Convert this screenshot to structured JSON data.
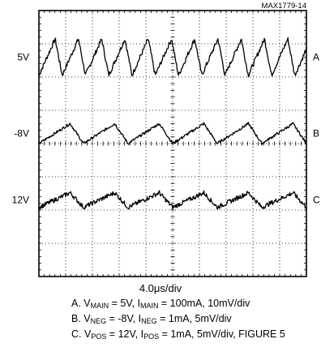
{
  "chart_data": {
    "type": "line",
    "figure_id": "MAX1779-14",
    "title": "",
    "xlabel": "4.0μs/div",
    "ylabel": "",
    "grid": true,
    "divisions": {
      "x": 10,
      "y": 8
    },
    "x_units": "div",
    "y_units": "div",
    "xlim": [
      0,
      10
    ],
    "ylim": [
      0,
      8
    ],
    "series": [
      {
        "marker": "A",
        "level_label": "5V",
        "waveform": "sawtooth",
        "center_div": 6.6,
        "amplitude_div": 0.55,
        "cycles": 11.5,
        "noise_div": 0.07,
        "description_parts": [
          {
            "t": "A. V"
          },
          {
            "t": "MAIN",
            "sub": true
          },
          {
            "t": " = 5V, I"
          },
          {
            "t": "MAIN",
            "sub": true
          },
          {
            "t": " = 100mA, 10mV/div"
          }
        ]
      },
      {
        "marker": "B",
        "level_label": "-8V",
        "waveform": "sawtooth",
        "center_div": 4.3,
        "amplitude_div": 0.3,
        "cycles": 6,
        "noise_div": 0.04,
        "description_parts": [
          {
            "t": "B. V"
          },
          {
            "t": "NEG",
            "sub": true
          },
          {
            "t": " = -8V, I"
          },
          {
            "t": "NEG",
            "sub": true
          },
          {
            "t": " = 1mA, 5mV/div"
          }
        ]
      },
      {
        "marker": "C",
        "level_label": "12V",
        "waveform": "sawtooth",
        "center_div": 2.3,
        "amplitude_div": 0.22,
        "cycles": 6,
        "noise_div": 0.07,
        "description_parts": [
          {
            "t": "C. V"
          },
          {
            "t": "POS",
            "sub": true
          },
          {
            "t": " = 12V, I"
          },
          {
            "t": "POS",
            "sub": true
          },
          {
            "t": " = 1mA, 5mV/div, FIGURE 5"
          }
        ]
      }
    ]
  },
  "colors": {
    "background": "#ffffff",
    "grid": "#000000",
    "trace": "#000000",
    "text": "#000000"
  }
}
